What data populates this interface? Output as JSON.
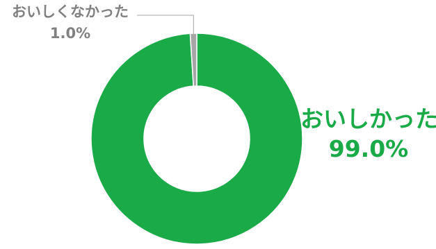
{
  "chart_data": {
    "type": "pie",
    "variant": "donut",
    "title": "",
    "slices": [
      {
        "label": "おいしかった",
        "value": 99.0,
        "value_label": "99.0%",
        "color": "#1aaa48"
      },
      {
        "label": "おいしくなかった",
        "value": 1.0,
        "value_label": "1.0%",
        "color": "#a6a6a6"
      }
    ],
    "legend": "none",
    "label_colors": {
      "major": "#1aaa48",
      "minor": "#808080"
    },
    "leader_line_color": "#a6a6a6"
  }
}
